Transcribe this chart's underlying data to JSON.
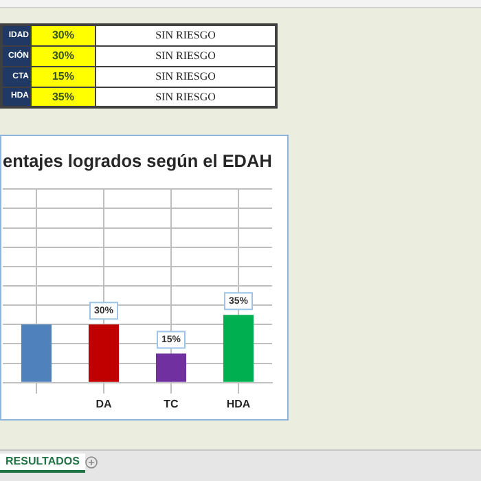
{
  "chart_data": {
    "type": "bar",
    "title": "entajes logrados según el EDAH",
    "categories": [
      null,
      "DA",
      "TC",
      "HDA"
    ],
    "values": [
      30,
      30,
      15,
      35
    ],
    "colors": [
      "#4f81bd",
      "#c00000",
      "#7030a0",
      "#00b050"
    ],
    "value_labels": [
      null,
      "30%",
      "15%",
      "35%"
    ],
    "ylim": [
      0,
      100
    ],
    "yticks": [
      {
        "value": 0,
        "label": null
      },
      {
        "value": 10,
        "label": null
      },
      {
        "value": 20,
        "label": null
      },
      {
        "value": 30,
        "label": null
      },
      {
        "value": 40,
        "label": null
      },
      {
        "value": 50,
        "label": null
      },
      {
        "value": 60,
        "label": null
      },
      {
        "value": 70,
        "label": null
      },
      {
        "value": 80,
        "label": null
      },
      {
        "value": 90,
        "label": null
      },
      {
        "value": 100,
        "label": null
      }
    ],
    "tick_labels": "x",
    "grid": true,
    "annotations": [
      "IDAD",
      "30%",
      "SIN RIESGO",
      "CIÓN",
      "30%",
      "SIN RIESGO",
      "CTA",
      "15%",
      "SIN RIESGO",
      "HDA",
      "35%",
      "SIN RIESGO",
      "RESULTADOS"
    ]
  }
}
